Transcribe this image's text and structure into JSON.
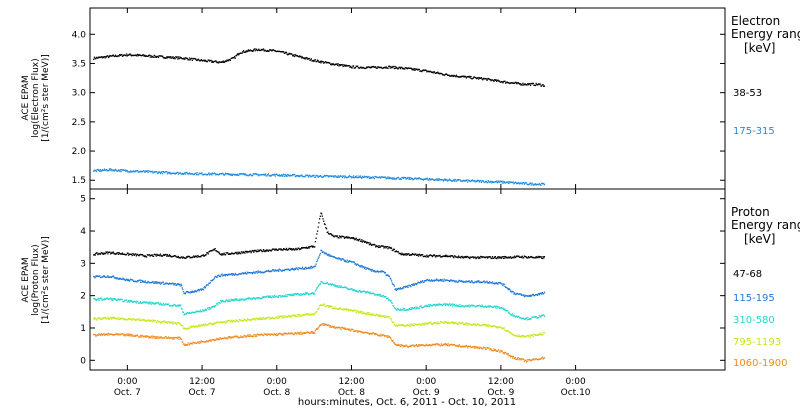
{
  "chart_data": {
    "type": "scatter",
    "x_axis": {
      "label": "hours:minutes, Oct. 6, 2011 - Oct. 10, 2011",
      "range_hours": [
        -6,
        96
      ],
      "ticks": [
        {
          "h": 0,
          "time": "0:00",
          "date": "Oct. 7"
        },
        {
          "h": 12,
          "time": "12:00",
          "date": "Oct. 7"
        },
        {
          "h": 24,
          "time": "0:00",
          "date": "Oct. 8"
        },
        {
          "h": 36,
          "time": "12:00",
          "date": "Oct. 8"
        },
        {
          "h": 48,
          "time": "0:00",
          "date": "Oct. 9"
        },
        {
          "h": 60,
          "time": "12:00",
          "date": "Oct. 9"
        },
        {
          "h": 72,
          "time": "0:00",
          "date": "Oct.10"
        }
      ]
    },
    "panels": [
      {
        "id": "electron",
        "ylabel_lines": [
          "ACE EPAM",
          "log(Electron Flux)",
          "[1/(cm²s ster MeV)]"
        ],
        "ylim": [
          1.35,
          4.45
        ],
        "yticks": [
          "1.5",
          "2.0",
          "2.5",
          "3.0",
          "3.5",
          "4.0"
        ],
        "legend_title_lines": [
          "Electron",
          "Energy ranges",
          "[keV]"
        ],
        "series": [
          {
            "name": "38-53",
            "color": "#000000",
            "x": [
              -5.5,
              -3,
              0,
              3,
              6,
              9,
              12,
              15,
              17,
              18,
              19,
              21,
              24,
              27,
              30,
              33,
              36,
              39,
              42,
              45,
              48,
              51,
              54,
              57,
              60,
              63,
              66,
              67
            ],
            "y": [
              3.6,
              3.63,
              3.66,
              3.64,
              3.62,
              3.6,
              3.56,
              3.53,
              3.6,
              3.7,
              3.72,
              3.75,
              3.72,
              3.64,
              3.56,
              3.5,
              3.45,
              3.44,
              3.45,
              3.42,
              3.38,
              3.32,
              3.28,
              3.25,
              3.2,
              3.16,
              3.15,
              3.13
            ]
          },
          {
            "name": "175-315",
            "color": "#1f8be0",
            "x": [
              -5.5,
              -3,
              0,
              6,
              12,
              18,
              24,
              30,
              36,
              42,
              48,
              54,
              60,
              64,
              67
            ],
            "y": [
              1.67,
              1.69,
              1.67,
              1.64,
              1.62,
              1.61,
              1.6,
              1.58,
              1.57,
              1.55,
              1.53,
              1.5,
              1.48,
              1.45,
              1.44
            ]
          }
        ]
      },
      {
        "id": "proton",
        "ylabel_lines": [
          "ACE EPAM",
          "log(Proton Flux)",
          "[1/(cm²s ster MeV)]"
        ],
        "ylim": [
          -0.3,
          5.3
        ],
        "yticks": [
          "0",
          "1",
          "2",
          "3",
          "4",
          "5"
        ],
        "legend_title_lines": [
          "Proton",
          "Energy ranges",
          "[keV]"
        ],
        "series": [
          {
            "name": "47-68",
            "color": "#000000",
            "x": [
              -5.5,
              -3,
              0,
              3,
              6,
              9,
              12,
              14,
              15,
              18,
              21,
              24,
              27,
              30,
              31,
              32,
              33,
              36,
              38,
              39,
              40,
              42,
              44,
              45,
              48,
              51,
              54,
              57,
              60,
              63,
              66,
              67
            ],
            "y": [
              3.3,
              3.35,
              3.3,
              3.25,
              3.28,
              3.2,
              3.25,
              3.45,
              3.3,
              3.35,
              3.4,
              3.45,
              3.45,
              3.55,
              4.6,
              4.0,
              3.85,
              3.8,
              3.7,
              3.6,
              3.55,
              3.5,
              3.3,
              3.3,
              3.25,
              3.25,
              3.2,
              3.2,
              3.2,
              3.22,
              3.2,
              3.2
            ]
          },
          {
            "name": "115-195",
            "color": "#1f78d8",
            "x": [
              -5.5,
              -3,
              0,
              3,
              6,
              8.5,
              9,
              12,
              14,
              15,
              18,
              21,
              24,
              27,
              30,
              31,
              33,
              36,
              39,
              41,
              42,
              43,
              45,
              48,
              51,
              54,
              57,
              60,
              62,
              64,
              67
            ],
            "y": [
              2.6,
              2.62,
              2.5,
              2.45,
              2.4,
              2.35,
              2.1,
              2.2,
              2.6,
              2.65,
              2.7,
              2.75,
              2.8,
              2.85,
              2.9,
              3.4,
              3.2,
              3.05,
              2.8,
              2.75,
              2.6,
              2.2,
              2.3,
              2.5,
              2.5,
              2.45,
              2.45,
              2.4,
              2.1,
              2.0,
              2.1
            ]
          },
          {
            "name": "310-580",
            "color": "#22d6cf",
            "x": [
              -5.5,
              -3,
              0,
              3,
              6,
              8.5,
              9,
              12,
              14,
              15,
              18,
              21,
              24,
              27,
              30,
              31,
              33,
              36,
              39,
              41,
              42,
              43,
              45,
              48,
              51,
              54,
              57,
              60,
              62,
              64,
              67
            ],
            "y": [
              1.9,
              1.92,
              1.85,
              1.8,
              1.75,
              1.7,
              1.45,
              1.55,
              1.7,
              1.85,
              1.9,
              1.95,
              2.0,
              2.05,
              2.1,
              2.45,
              2.35,
              2.2,
              2.1,
              2.0,
              1.9,
              1.6,
              1.6,
              1.7,
              1.75,
              1.7,
              1.7,
              1.65,
              1.4,
              1.3,
              1.4
            ]
          },
          {
            "name": "795-1193",
            "color": "#c8e61c",
            "x": [
              -5.5,
              -3,
              0,
              3,
              6,
              8.5,
              9,
              12,
              15,
              18,
              21,
              24,
              27,
              30,
              31,
              33,
              36,
              39,
              42,
              43,
              45,
              48,
              51,
              54,
              57,
              60,
              62,
              64,
              67
            ],
            "y": [
              1.3,
              1.32,
              1.3,
              1.25,
              1.2,
              1.15,
              1.0,
              1.1,
              1.2,
              1.25,
              1.3,
              1.35,
              1.4,
              1.45,
              1.75,
              1.65,
              1.55,
              1.45,
              1.35,
              1.1,
              1.1,
              1.15,
              1.2,
              1.15,
              1.1,
              1.05,
              0.8,
              0.75,
              0.85
            ]
          },
          {
            "name": "1060-1900",
            "color": "#f08a1c",
            "x": [
              -5.5,
              -3,
              0,
              3,
              6,
              8.5,
              9,
              12,
              15,
              18,
              21,
              24,
              27,
              30,
              31,
              33,
              36,
              39,
              42,
              43,
              45,
              48,
              51,
              54,
              57,
              60,
              62,
              64,
              67
            ],
            "y": [
              0.8,
              0.82,
              0.8,
              0.75,
              0.72,
              0.7,
              0.5,
              0.6,
              0.7,
              0.75,
              0.8,
              0.82,
              0.85,
              0.88,
              1.15,
              1.05,
              0.95,
              0.85,
              0.75,
              0.5,
              0.45,
              0.5,
              0.5,
              0.45,
              0.4,
              0.3,
              0.1,
              0.0,
              0.1
            ]
          }
        ]
      }
    ]
  }
}
